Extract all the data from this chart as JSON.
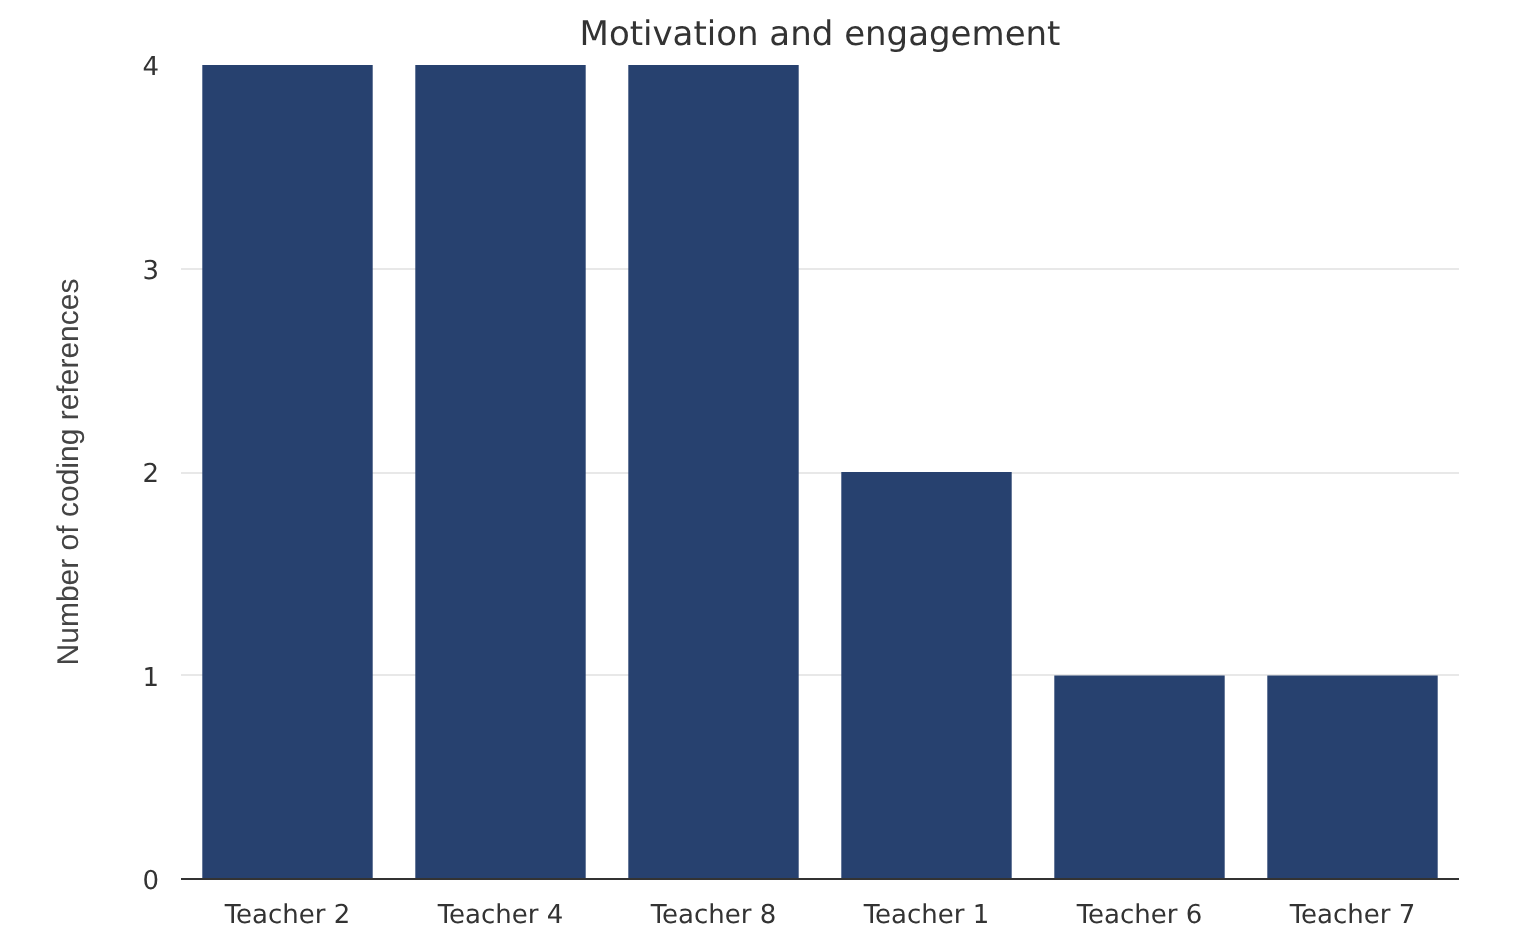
{
  "chart_data": {
    "type": "bar",
    "title": "Motivation and engagement",
    "ylabel": "Number of coding references",
    "categories": [
      "Teacher 2",
      "Teacher 4",
      "Teacher 8",
      "Teacher 1",
      "Teacher 6",
      "Teacher 7"
    ],
    "values": [
      4,
      4,
      4,
      2,
      1,
      1
    ],
    "color": "#27416f",
    "ylim": [
      0,
      4
    ],
    "yticks": [
      0,
      1,
      2,
      3,
      4
    ],
    "grid": "y"
  }
}
